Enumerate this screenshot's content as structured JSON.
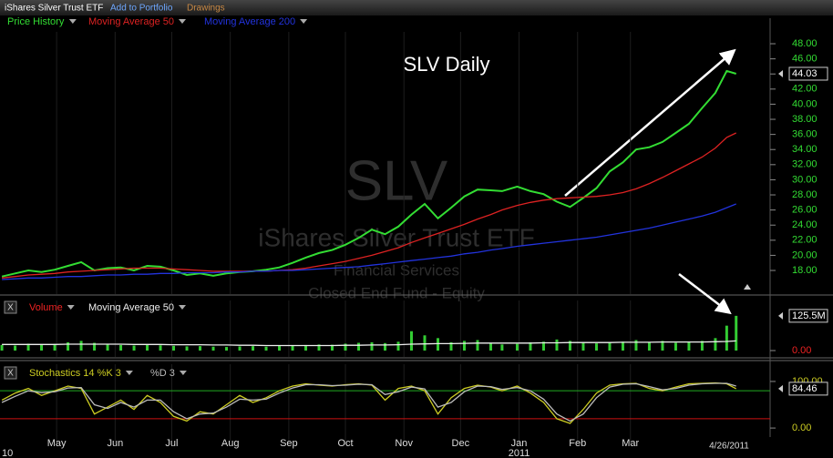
{
  "toolbar": {
    "title": "iShares Silver Trust ETF",
    "add": "Add to Portfolio",
    "drawings": "Drawings",
    "close": "X"
  },
  "chart_data": [
    {
      "type": "line",
      "title": "SLV Daily",
      "watermark": {
        "symbol": "SLV",
        "name": "iShares Silver Trust ETF",
        "sector": "Financial Services",
        "category": "Closed End Fund - Equity"
      },
      "x": [
        "4/2/2010",
        "4/9/2010",
        "4/16/2010",
        "4/23/2010",
        "4/30/2010",
        "5/7/2010",
        "5/14/2010",
        "5/21/2010",
        "5/28/2010",
        "6/4/2010",
        "6/11/2010",
        "6/18/2010",
        "6/25/2010",
        "7/2/2010",
        "7/9/2010",
        "7/16/2010",
        "7/23/2010",
        "7/30/2010",
        "8/6/2010",
        "8/13/2010",
        "8/20/2010",
        "8/27/2010",
        "9/3/2010",
        "9/10/2010",
        "9/17/2010",
        "9/24/2010",
        "10/1/2010",
        "10/8/2010",
        "10/15/2010",
        "10/22/2010",
        "10/29/2010",
        "11/5/2010",
        "11/12/2010",
        "11/19/2010",
        "11/26/2010",
        "12/3/2010",
        "12/10/2010",
        "12/17/2010",
        "12/23/2010",
        "12/31/2010",
        "1/7/2011",
        "1/14/2011",
        "1/21/2011",
        "1/28/2011",
        "2/4/2011",
        "2/11/2011",
        "2/18/2011",
        "2/25/2011",
        "3/4/2011",
        "3/11/2011",
        "3/18/2011",
        "3/25/2011",
        "4/1/2011",
        "4/8/2011",
        "4/15/2011",
        "4/21/2011",
        "4/26/2011"
      ],
      "series": [
        {
          "name": "Price History",
          "color": "#33dd33",
          "values": [
            17.2,
            17.6,
            18.0,
            17.8,
            18.1,
            18.6,
            19.1,
            18.0,
            18.3,
            18.4,
            18.0,
            18.6,
            18.5,
            18.0,
            17.4,
            17.6,
            17.3,
            17.6,
            17.8,
            17.9,
            18.1,
            18.4,
            19.0,
            19.7,
            20.3,
            20.7,
            21.4,
            22.3,
            23.4,
            22.8,
            23.8,
            25.4,
            26.8,
            24.9,
            26.3,
            27.8,
            28.7,
            28.6,
            28.5,
            29.1,
            28.5,
            28.1,
            27.1,
            26.4,
            27.6,
            28.9,
            31.1,
            32.3,
            34.0,
            34.3,
            35.0,
            36.2,
            37.4,
            39.5,
            41.5,
            44.4,
            44.03
          ]
        },
        {
          "name": "Moving Average 50",
          "color": "#dd2222",
          "values": [
            17.0,
            17.2,
            17.4,
            17.5,
            17.6,
            17.8,
            17.9,
            18.0,
            18.1,
            18.2,
            18.3,
            18.3,
            18.3,
            18.2,
            18.1,
            18.0,
            17.9,
            17.9,
            17.9,
            17.9,
            17.9,
            18.0,
            18.1,
            18.3,
            18.6,
            18.9,
            19.2,
            19.6,
            20.0,
            20.5,
            21.0,
            21.7,
            22.3,
            22.9,
            23.5,
            24.1,
            24.8,
            25.4,
            26.0,
            26.6,
            27.0,
            27.3,
            27.5,
            27.6,
            27.7,
            27.8,
            28.0,
            28.3,
            28.8,
            29.5,
            30.3,
            31.2,
            32.1,
            33.0,
            34.2,
            35.6,
            36.2
          ]
        },
        {
          "name": "Moving Average 200",
          "color": "#2233dd",
          "values": [
            16.8,
            16.9,
            17.0,
            17.0,
            17.1,
            17.2,
            17.2,
            17.3,
            17.4,
            17.4,
            17.5,
            17.5,
            17.6,
            17.6,
            17.7,
            17.7,
            17.7,
            17.8,
            17.8,
            17.9,
            17.9,
            18.0,
            18.0,
            18.1,
            18.2,
            18.3,
            18.4,
            18.5,
            18.7,
            18.9,
            19.1,
            19.3,
            19.5,
            19.7,
            19.9,
            20.2,
            20.4,
            20.7,
            20.9,
            21.2,
            21.4,
            21.6,
            21.8,
            22.0,
            22.2,
            22.4,
            22.7,
            23.0,
            23.3,
            23.6,
            24.0,
            24.4,
            24.8,
            25.2,
            25.7,
            26.3,
            26.8
          ]
        }
      ],
      "xlim": [
        "4/1/2010",
        "5/14/2011"
      ],
      "xticks": [
        {
          "value": "5/1/2010",
          "label": "May"
        },
        {
          "value": "6/1/2010",
          "label": "Jun"
        },
        {
          "value": "7/1/2010",
          "label": "Jul"
        },
        {
          "value": "8/1/2010",
          "label": "Aug"
        },
        {
          "value": "9/1/2010",
          "label": "Sep"
        },
        {
          "value": "10/1/2010",
          "label": "Oct"
        },
        {
          "value": "11/1/2010",
          "label": "Nov"
        },
        {
          "value": "12/1/2010",
          "label": "Dec"
        },
        {
          "value": "1/1/2011",
          "label": "Jan"
        },
        {
          "value": "2/1/2011",
          "label": "Feb"
        },
        {
          "value": "3/1/2011",
          "label": "Mar"
        }
      ],
      "year_ticks": [
        {
          "value": "4/1/2010",
          "label": "10"
        },
        {
          "value": "1/1/2011",
          "label": "2011"
        }
      ],
      "ylim": [
        14.87,
        49.57
      ],
      "yticks": [
        {
          "value": 18,
          "label": "18.00"
        },
        {
          "value": 20,
          "label": "20.00"
        },
        {
          "value": 22,
          "label": "22.00"
        },
        {
          "value": 24,
          "label": "24.00"
        },
        {
          "value": 26,
          "label": "26.00"
        },
        {
          "value": 28,
          "label": "28.00"
        },
        {
          "value": 30,
          "label": "30.00"
        },
        {
          "value": 32,
          "label": "32.00"
        },
        {
          "value": 34,
          "label": "34.00"
        },
        {
          "value": 36,
          "label": "36.00"
        },
        {
          "value": 38,
          "label": "38.00"
        },
        {
          "value": 40,
          "label": "40.00"
        },
        {
          "value": 42,
          "label": "42.00"
        },
        {
          "value": 44,
          "label": "44.00"
        },
        {
          "value": 46,
          "label": "46.00"
        },
        {
          "value": 48,
          "label": "48.00"
        }
      ],
      "tick_color": "#33dd33",
      "grid": true
    },
    {
      "type": "bar",
      "series": [
        {
          "name": "Volume",
          "color": "#ee2222",
          "bar_color": "#33cc33",
          "current_label": "125.5M",
          "values": [
            20,
            18,
            25,
            22,
            24,
            30,
            35,
            28,
            22,
            20,
            18,
            22,
            19,
            17,
            15,
            16,
            14,
            13,
            15,
            16,
            14,
            17,
            18,
            20,
            22,
            21,
            25,
            28,
            30,
            27,
            32,
            70,
            55,
            45,
            30,
            35,
            38,
            28,
            22,
            24,
            30,
            32,
            40,
            35,
            28,
            26,
            30,
            32,
            38,
            30,
            35,
            28,
            30,
            35,
            45,
            90,
            125.5
          ]
        },
        {
          "name": "Moving Average 50",
          "color": "#eeeeee",
          "values": [
            22,
            22,
            22,
            22,
            22,
            23,
            23,
            23,
            23,
            23,
            22,
            22,
            22,
            21,
            21,
            21,
            20,
            20,
            19,
            19,
            18,
            18,
            18,
            18,
            18,
            18,
            19,
            19,
            20,
            20,
            21,
            23,
            24,
            25,
            25,
            26,
            27,
            27,
            27,
            27,
            27,
            28,
            28,
            29,
            29,
            29,
            29,
            30,
            30,
            30,
            31,
            31,
            31,
            31,
            32,
            33,
            35
          ]
        }
      ],
      "ylim": [
        -23,
        181
      ],
      "yticks": [
        {
          "value": 0,
          "label": "0.00"
        }
      ],
      "tick_color": "#ee2222"
    },
    {
      "type": "line",
      "series": [
        {
          "name": "Stochastics 14 %K 3",
          "color": "#cccc22",
          "values": [
            60,
            75,
            85,
            70,
            80,
            90,
            85,
            30,
            45,
            60,
            40,
            70,
            55,
            25,
            15,
            35,
            30,
            50,
            70,
            55,
            65,
            80,
            90,
            95,
            92,
            90,
            93,
            95,
            92,
            60,
            85,
            90,
            80,
            30,
            65,
            85,
            92,
            88,
            80,
            90,
            75,
            55,
            20,
            10,
            40,
            75,
            92,
            95,
            96,
            85,
            80,
            88,
            95,
            96,
            97,
            95,
            84.46
          ]
        },
        {
          "name": "%D 3",
          "color": "#bbbbbb",
          "values": [
            55,
            68,
            80,
            76,
            78,
            86,
            87,
            50,
            42,
            55,
            45,
            60,
            60,
            35,
            20,
            30,
            32,
            45,
            62,
            60,
            62,
            75,
            86,
            93,
            93,
            91,
            92,
            94,
            93,
            72,
            78,
            88,
            84,
            45,
            55,
            78,
            90,
            89,
            83,
            87,
            80,
            62,
            30,
            15,
            30,
            65,
            88,
            94,
            95,
            89,
            82,
            85,
            92,
            95,
            96,
            96,
            90
          ]
        }
      ],
      "levels": [
        {
          "value": 80,
          "color": "#22aa22"
        },
        {
          "value": 20,
          "color": "#cc1111"
        }
      ],
      "ylim": [
        -35,
        137
      ],
      "yticks": [
        {
          "value": 0,
          "label": "0.00"
        },
        {
          "value": 100,
          "label": "100.00"
        }
      ],
      "tick_color": "#cccc22"
    }
  ]
}
